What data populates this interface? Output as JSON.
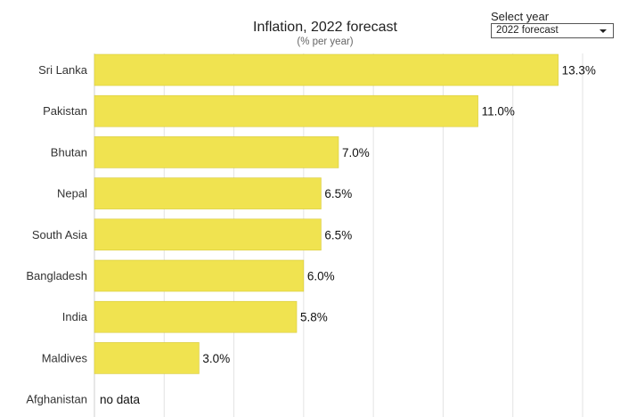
{
  "chart_data": {
    "type": "bar",
    "orientation": "horizontal",
    "title": "Inflation, 2022 forecast",
    "subtitle": "(% per year)",
    "categories": [
      "Sri Lanka",
      "Pakistan",
      "Bhutan",
      "Nepal",
      "South Asia",
      "Bangladesh",
      "India",
      "Maldives",
      "Afghanistan"
    ],
    "values": [
      13.3,
      11.0,
      7.0,
      6.5,
      6.5,
      6.0,
      5.8,
      3.0,
      null
    ],
    "labels": [
      "13.3%",
      "11.0%",
      "7.0%",
      "6.5%",
      "6.5%",
      "6.0%",
      "5.8%",
      "3.0%",
      "no data"
    ],
    "xlim": [
      0,
      14
    ],
    "grid": true,
    "bar_color": "#f0e350"
  },
  "controls": {
    "select_label": "Select year",
    "selected_value": "2022 forecast"
  }
}
